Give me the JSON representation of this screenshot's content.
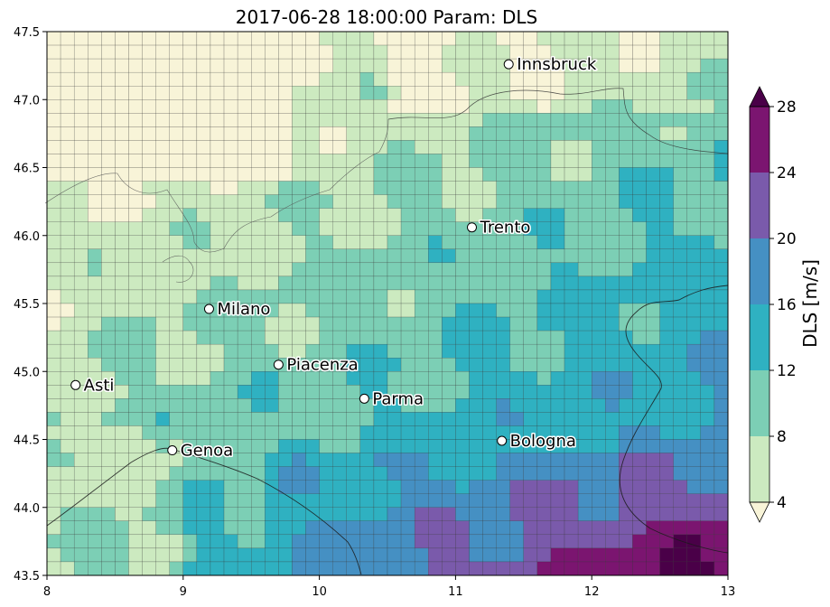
{
  "title": "2017-06-28 18:00:00 Param: DLS",
  "map": {
    "lon_range": [
      8,
      13
    ],
    "lat_range": [
      43.5,
      47.5
    ],
    "x_ticks": [
      "8",
      "9",
      "10",
      "11",
      "12",
      "13"
    ],
    "y_ticks": [
      "43.5",
      "44.0",
      "44.5",
      "45.0",
      "45.5",
      "46.0",
      "46.5",
      "47.0",
      "47.5"
    ],
    "grid_cols": 50,
    "grid_rows": 40,
    "cities": [
      {
        "name": "Innsbruck",
        "lon": 11.39,
        "lat": 47.26
      },
      {
        "name": "Trento",
        "lon": 11.12,
        "lat": 46.06
      },
      {
        "name": "Milano",
        "lon": 9.19,
        "lat": 45.46
      },
      {
        "name": "Piacenza",
        "lon": 9.7,
        "lat": 45.05
      },
      {
        "name": "Asti",
        "lon": 8.21,
        "lat": 44.9
      },
      {
        "name": "Parma",
        "lon": 10.33,
        "lat": 44.8
      },
      {
        "name": "Genoa",
        "lon": 8.92,
        "lat": 44.42
      },
      {
        "name": "Bologna",
        "lon": 11.34,
        "lat": 44.49
      }
    ]
  },
  "colorbar": {
    "label": "DLS  [m/s]",
    "ticks": [
      "4",
      "8",
      "12",
      "16",
      "20",
      "24",
      "28"
    ],
    "bins": [
      {
        "from": 4,
        "to": 8,
        "color": "#cceac0"
      },
      {
        "from": 8,
        "to": 12,
        "color": "#7ccfb5"
      },
      {
        "from": 12,
        "to": 16,
        "color": "#2fb1c1"
      },
      {
        "from": 16,
        "to": 20,
        "color": "#4590c3"
      },
      {
        "from": 20,
        "to": 24,
        "color": "#7a5aab"
      },
      {
        "from": 24,
        "to": 28,
        "color": "#7b1570"
      }
    ],
    "under_color": "#f8f4d8",
    "over_color": "#4a0048"
  }
}
